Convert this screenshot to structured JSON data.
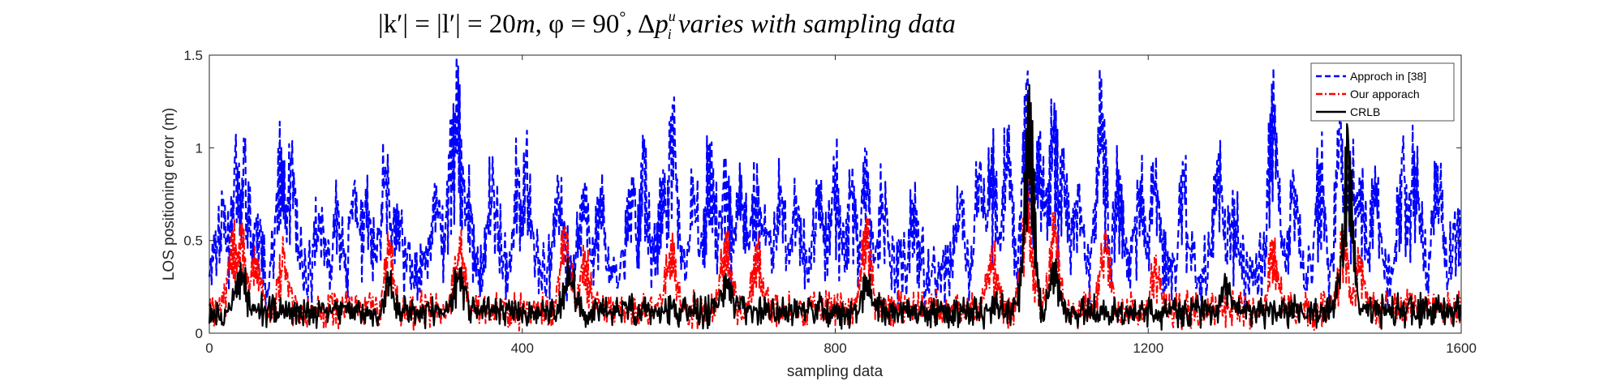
{
  "chart_data": {
    "type": "line",
    "title": "|k′| = |l′| = 20m, φ = 90°, Δp_i^u varies with sampling data",
    "title_parts": {
      "lhs": "|k′| = |l′| = 20",
      "unit": "m",
      "phi": ", φ = 90",
      "deg": "°",
      "comma": ", Δ",
      "p": "p",
      "sup": "u",
      "sub": "i",
      "tail": " varies with sampling data"
    },
    "xlabel": "sampling data",
    "ylabel": "LOS positioning error (m)",
    "xlim": [
      0,
      1600
    ],
    "ylim": [
      0,
      1.5
    ],
    "xticks": [
      0,
      400,
      800,
      1200,
      1600
    ],
    "yticks": [
      0,
      0.5,
      1,
      1.5
    ],
    "xtick_labels": [
      "0",
      "400",
      "800",
      "1200",
      "1600"
    ],
    "ytick_labels": [
      "0",
      "0.5",
      "1",
      "1.5"
    ],
    "grid": false,
    "legend_position": "top-right",
    "n_samples": 1600,
    "series": [
      {
        "name": "Approch in [38]",
        "color": "#0000ff",
        "style": "dashed",
        "baseline": 0.32,
        "peaks": [
          [
            8,
            0.55
          ],
          [
            18,
            0.72
          ],
          [
            33,
            0.98
          ],
          [
            45,
            0.95
          ],
          [
            60,
            0.62
          ],
          [
            92,
            1.0
          ],
          [
            105,
            0.93
          ],
          [
            140,
            0.65
          ],
          [
            165,
            0.68
          ],
          [
            185,
            0.8
          ],
          [
            200,
            0.78
          ],
          [
            225,
            0.9
          ],
          [
            240,
            0.7
          ],
          [
            290,
            0.8
          ],
          [
            310,
            1.15
          ],
          [
            318,
            1.44
          ],
          [
            330,
            0.75
          ],
          [
            362,
            0.95
          ],
          [
            395,
            0.9
          ],
          [
            405,
            0.98
          ],
          [
            445,
            0.85
          ],
          [
            480,
            0.82
          ],
          [
            500,
            0.78
          ],
          [
            540,
            0.85
          ],
          [
            555,
            0.95
          ],
          [
            580,
            0.88
          ],
          [
            592,
            1.23
          ],
          [
            620,
            0.75
          ],
          [
            640,
            1.02
          ],
          [
            660,
            0.95
          ],
          [
            680,
            0.85
          ],
          [
            700,
            0.92
          ],
          [
            710,
            0.7
          ],
          [
            730,
            0.8
          ],
          [
            750,
            0.75
          ],
          [
            780,
            0.8
          ],
          [
            800,
            0.9
          ],
          [
            820,
            0.78
          ],
          [
            840,
            0.98
          ],
          [
            860,
            0.75
          ],
          [
            900,
            0.7
          ],
          [
            960,
            0.75
          ],
          [
            985,
            0.92
          ],
          [
            1000,
            1.0
          ],
          [
            1020,
            1.1
          ],
          [
            1045,
            1.34
          ],
          [
            1062,
            1.1
          ],
          [
            1080,
            1.24
          ],
          [
            1092,
            1.0
          ],
          [
            1110,
            0.8
          ],
          [
            1140,
            1.38
          ],
          [
            1162,
            0.88
          ],
          [
            1190,
            0.82
          ],
          [
            1210,
            0.95
          ],
          [
            1245,
            0.9
          ],
          [
            1290,
            0.98
          ],
          [
            1310,
            0.72
          ],
          [
            1360,
            1.43
          ],
          [
            1385,
            0.88
          ],
          [
            1420,
            0.92
          ],
          [
            1445,
            1.15
          ],
          [
            1458,
            0.98
          ],
          [
            1470,
            0.85
          ],
          [
            1490,
            0.9
          ],
          [
            1525,
            0.98
          ],
          [
            1540,
            0.98
          ],
          [
            1570,
            0.9
          ],
          [
            1595,
            0.6
          ]
        ]
      },
      {
        "name": "Our apporach",
        "color": "#ff0000",
        "style": "dashdot",
        "baseline": 0.13,
        "peaks": [
          [
            30,
            0.55
          ],
          [
            42,
            0.6
          ],
          [
            60,
            0.4
          ],
          [
            95,
            0.42
          ],
          [
            230,
            0.5
          ],
          [
            320,
            0.52
          ],
          [
            455,
            0.58
          ],
          [
            480,
            0.45
          ],
          [
            590,
            0.5
          ],
          [
            660,
            0.55
          ],
          [
            700,
            0.48
          ],
          [
            840,
            0.62
          ],
          [
            1000,
            0.48
          ],
          [
            1045,
            0.82
          ],
          [
            1080,
            0.65
          ],
          [
            1145,
            0.55
          ],
          [
            1210,
            0.42
          ],
          [
            1360,
            0.5
          ],
          [
            1450,
            0.55
          ],
          [
            1470,
            0.42
          ]
        ]
      },
      {
        "name": "CRLB",
        "color": "#000000",
        "style": "solid",
        "baseline": 0.12,
        "peaks": [
          [
            40,
            0.38
          ],
          [
            230,
            0.3
          ],
          [
            320,
            0.35
          ],
          [
            460,
            0.35
          ],
          [
            660,
            0.32
          ],
          [
            840,
            0.3
          ],
          [
            1045,
            0.55
          ],
          [
            1048,
            1.34
          ],
          [
            1080,
            0.38
          ],
          [
            1300,
            0.3
          ],
          [
            1450,
            0.45
          ],
          [
            1455,
            1.1
          ]
        ]
      }
    ]
  }
}
